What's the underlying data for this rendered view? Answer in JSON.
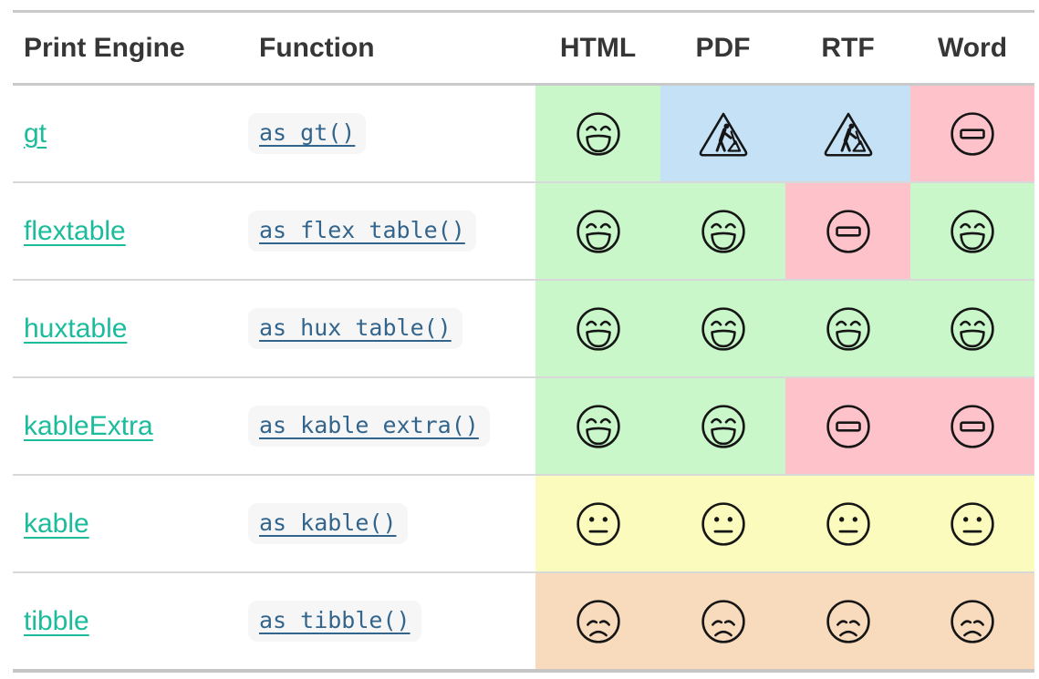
{
  "table": {
    "headers": [
      {
        "label": "Print Engine",
        "align": "left"
      },
      {
        "label": "Function",
        "align": "left"
      },
      {
        "label": "HTML",
        "align": "center"
      },
      {
        "label": "PDF",
        "align": "center"
      },
      {
        "label": "RTF",
        "align": "center"
      },
      {
        "label": "Word",
        "align": "center"
      }
    ],
    "rows": [
      {
        "engine": "gt",
        "fn": "as_gt()",
        "cells": [
          {
            "format": "HTML",
            "icon": "laughing-face",
            "bg": "green"
          },
          {
            "format": "PDF",
            "icon": "construction-sign",
            "bg": "blue"
          },
          {
            "format": "RTF",
            "icon": "construction-sign",
            "bg": "blue"
          },
          {
            "format": "Word",
            "icon": "no-entry-sign",
            "bg": "red"
          }
        ]
      },
      {
        "engine": "flextable",
        "fn": "as_flex_table()",
        "cells": [
          {
            "format": "HTML",
            "icon": "laughing-face",
            "bg": "green"
          },
          {
            "format": "PDF",
            "icon": "laughing-face",
            "bg": "green"
          },
          {
            "format": "RTF",
            "icon": "no-entry-sign",
            "bg": "red"
          },
          {
            "format": "Word",
            "icon": "laughing-face",
            "bg": "green"
          }
        ]
      },
      {
        "engine": "huxtable",
        "fn": "as_hux_table()",
        "cells": [
          {
            "format": "HTML",
            "icon": "laughing-face",
            "bg": "green"
          },
          {
            "format": "PDF",
            "icon": "laughing-face",
            "bg": "green"
          },
          {
            "format": "RTF",
            "icon": "laughing-face",
            "bg": "green"
          },
          {
            "format": "Word",
            "icon": "laughing-face",
            "bg": "green"
          }
        ]
      },
      {
        "engine": "kableExtra",
        "fn": "as_kable_extra()",
        "cells": [
          {
            "format": "HTML",
            "icon": "laughing-face",
            "bg": "green"
          },
          {
            "format": "PDF",
            "icon": "laughing-face",
            "bg": "green"
          },
          {
            "format": "RTF",
            "icon": "no-entry-sign",
            "bg": "red"
          },
          {
            "format": "Word",
            "icon": "no-entry-sign",
            "bg": "red"
          }
        ]
      },
      {
        "engine": "kable",
        "fn": "as_kable()",
        "cells": [
          {
            "format": "HTML",
            "icon": "neutral-face",
            "bg": "yellow"
          },
          {
            "format": "PDF",
            "icon": "neutral-face",
            "bg": "yellow"
          },
          {
            "format": "RTF",
            "icon": "neutral-face",
            "bg": "yellow"
          },
          {
            "format": "Word",
            "icon": "neutral-face",
            "bg": "yellow"
          }
        ]
      },
      {
        "engine": "tibble",
        "fn": "as_tibble()",
        "cells": [
          {
            "format": "HTML",
            "icon": "worried-face",
            "bg": "orange"
          },
          {
            "format": "PDF",
            "icon": "worried-face",
            "bg": "orange"
          },
          {
            "format": "RTF",
            "icon": "worried-face",
            "bg": "orange"
          },
          {
            "format": "Word",
            "icon": "worried-face",
            "bg": "orange"
          }
        ]
      }
    ],
    "cell_colors": {
      "green": "#c9f7c9",
      "blue": "#c4e1f6",
      "red": "#fec3ca",
      "yellow": "#fbfbbd",
      "orange": "#f8dbbc"
    },
    "link_colors": {
      "engine_link": "#1abc9c",
      "function_link": "#33658c"
    }
  }
}
